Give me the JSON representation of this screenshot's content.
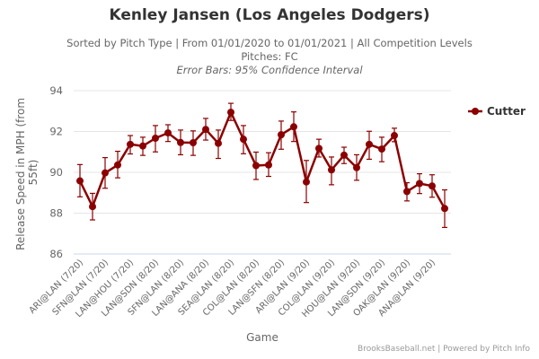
{
  "header": {
    "title": "Kenley Jansen (Los Angeles Dodgers)",
    "subtitle": "Sorted by Pitch Type | From 01/01/2020 to 01/01/2021 | All Competition Levels",
    "pitches": "Pitches: FC",
    "error_note": "Error Bars: 95% Confidence Interval"
  },
  "credit": "BrooksBaseball.net | Powered by Pitch Info",
  "colors": {
    "series": "#8B0000",
    "grid": "#e6e6e6",
    "axis": "#ccd6eb"
  },
  "chart_data": {
    "type": "line",
    "title": "Kenley Jansen (Los Angeles Dodgers)",
    "xlabel": "Game",
    "ylabel": "Release Speed in MPH (from 55ft)",
    "ylim": [
      86,
      94
    ],
    "yticks": [
      94,
      92,
      90,
      88,
      86
    ],
    "grid": true,
    "legend_position": "right",
    "x_tick_labels": [
      "ARI@LAN (7/20)",
      "SFN@LAN (7/20)",
      "LAN@HOU (7/20)",
      "LAN@SDN (8/20)",
      "SFN@LAN (8/20)",
      "LAN@ANA (8/20)",
      "SEA@LAN (8/20)",
      "COL@LAN (8/20)",
      "LAN@SFN (8/20)",
      "ARI@LAN (9/20)",
      "COL@LAN (9/20)",
      "HOU@LAN (9/20)",
      "LAN@SDN (9/20)",
      "OAK@LAN (9/20)",
      "ANA@LAN (9/20)"
    ],
    "x_tick_every": 2,
    "series": [
      {
        "name": "Cutter",
        "values": [
          89.58,
          88.32,
          89.97,
          90.36,
          91.37,
          91.29,
          91.67,
          91.93,
          91.46,
          91.45,
          92.1,
          91.42,
          92.94,
          91.62,
          90.33,
          90.36,
          91.84,
          92.23,
          89.53,
          91.17,
          90.12,
          90.84,
          90.23,
          91.37,
          91.14,
          91.8,
          89.06,
          89.45,
          89.33,
          88.23
        ],
        "upper": [
          90.38,
          88.97,
          90.72,
          91.03,
          91.8,
          91.72,
          92.29,
          92.33,
          92.07,
          92.03,
          92.64,
          92.07,
          93.38,
          92.29,
          90.99,
          90.96,
          92.51,
          92.96,
          90.58,
          91.62,
          90.75,
          91.23,
          90.86,
          92.01,
          91.72,
          92.16,
          89.49,
          89.93,
          89.88,
          89.14
        ],
        "lower": [
          88.8,
          87.67,
          89.22,
          89.73,
          90.9,
          90.83,
          91.0,
          91.51,
          90.86,
          90.83,
          91.58,
          90.68,
          92.54,
          90.91,
          89.65,
          89.8,
          91.13,
          91.51,
          88.52,
          90.75,
          89.39,
          90.43,
          89.61,
          90.64,
          90.52,
          91.5,
          88.6,
          88.96,
          88.78,
          87.3
        ]
      }
    ]
  }
}
